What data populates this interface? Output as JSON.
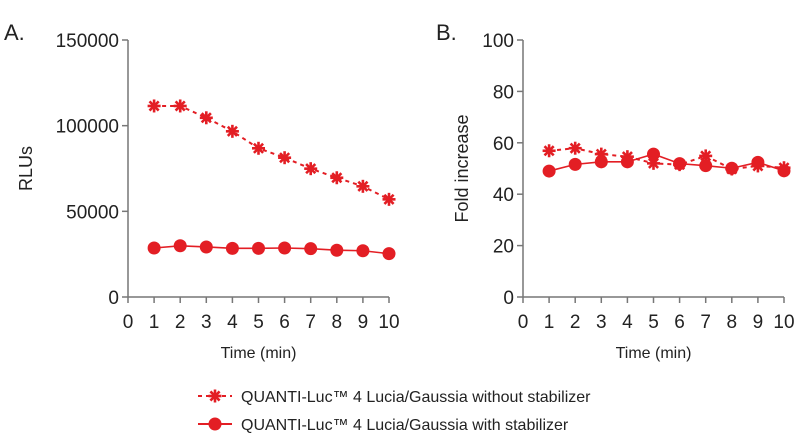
{
  "colors": {
    "series": "#e31e24",
    "axis": "#777777"
  },
  "legend": {
    "placement": "bottom",
    "items": [
      {
        "label": "QUANTI-Luc™ 4 Lucia/Gaussia without stabilizer",
        "marker": "asterisk",
        "line": "dashed"
      },
      {
        "label": "QUANTI-Luc™ 4 Lucia/Gaussia with stabilizer",
        "marker": "circle",
        "line": "solid"
      }
    ]
  },
  "chart_data": [
    {
      "panel_label": "A.",
      "type": "line",
      "xlabel": "Time (min)",
      "ylabel": "RLUs",
      "xlim": [
        0,
        10
      ],
      "ylim": [
        0,
        150000
      ],
      "xticks": [
        "0",
        "1",
        "2",
        "3",
        "4",
        "5",
        "6",
        "7",
        "8",
        "9",
        "10"
      ],
      "yticks": [
        "0",
        "50000",
        "100000",
        "150000"
      ],
      "grid": false,
      "x": [
        1,
        2,
        3,
        4,
        5,
        6,
        7,
        8,
        9,
        10
      ],
      "series": [
        {
          "name": "QUANTI-Luc™ 4 Lucia/Gaussia without stabilizer",
          "values": [
            111500,
            111500,
            104600,
            96700,
            86800,
            81300,
            74900,
            69600,
            64600,
            57000
          ]
        },
        {
          "name": "QUANTI-Luc™ 4 Lucia/Gaussia with stabilizer",
          "values": [
            28600,
            29900,
            29200,
            28400,
            28400,
            28600,
            28200,
            27300,
            27000,
            25300
          ]
        }
      ]
    },
    {
      "panel_label": "B.",
      "type": "line",
      "xlabel": "Time (min)",
      "ylabel": "Fold increase",
      "xlim": [
        0,
        10
      ],
      "ylim": [
        0,
        100
      ],
      "xticks": [
        "0",
        "1",
        "2",
        "3",
        "4",
        "5",
        "6",
        "7",
        "8",
        "9",
        "10"
      ],
      "yticks": [
        "0",
        "20",
        "40",
        "60",
        "80",
        "100"
      ],
      "grid": false,
      "x": [
        1,
        2,
        3,
        4,
        5,
        6,
        7,
        8,
        9,
        10
      ],
      "series": [
        {
          "name": "QUANTI-Luc™ 4 Lucia/Gaussia without stabilizer",
          "values": [
            56.9,
            57.9,
            55.6,
            54.6,
            52.0,
            51.5,
            54.9,
            49.8,
            51.0,
            50.3
          ]
        },
        {
          "name": "QUANTI-Luc™ 4 Lucia/Gaussia with stabilizer",
          "values": [
            49.0,
            51.6,
            52.6,
            52.6,
            55.6,
            51.9,
            51.1,
            50.1,
            52.4,
            49.1
          ]
        }
      ]
    }
  ]
}
